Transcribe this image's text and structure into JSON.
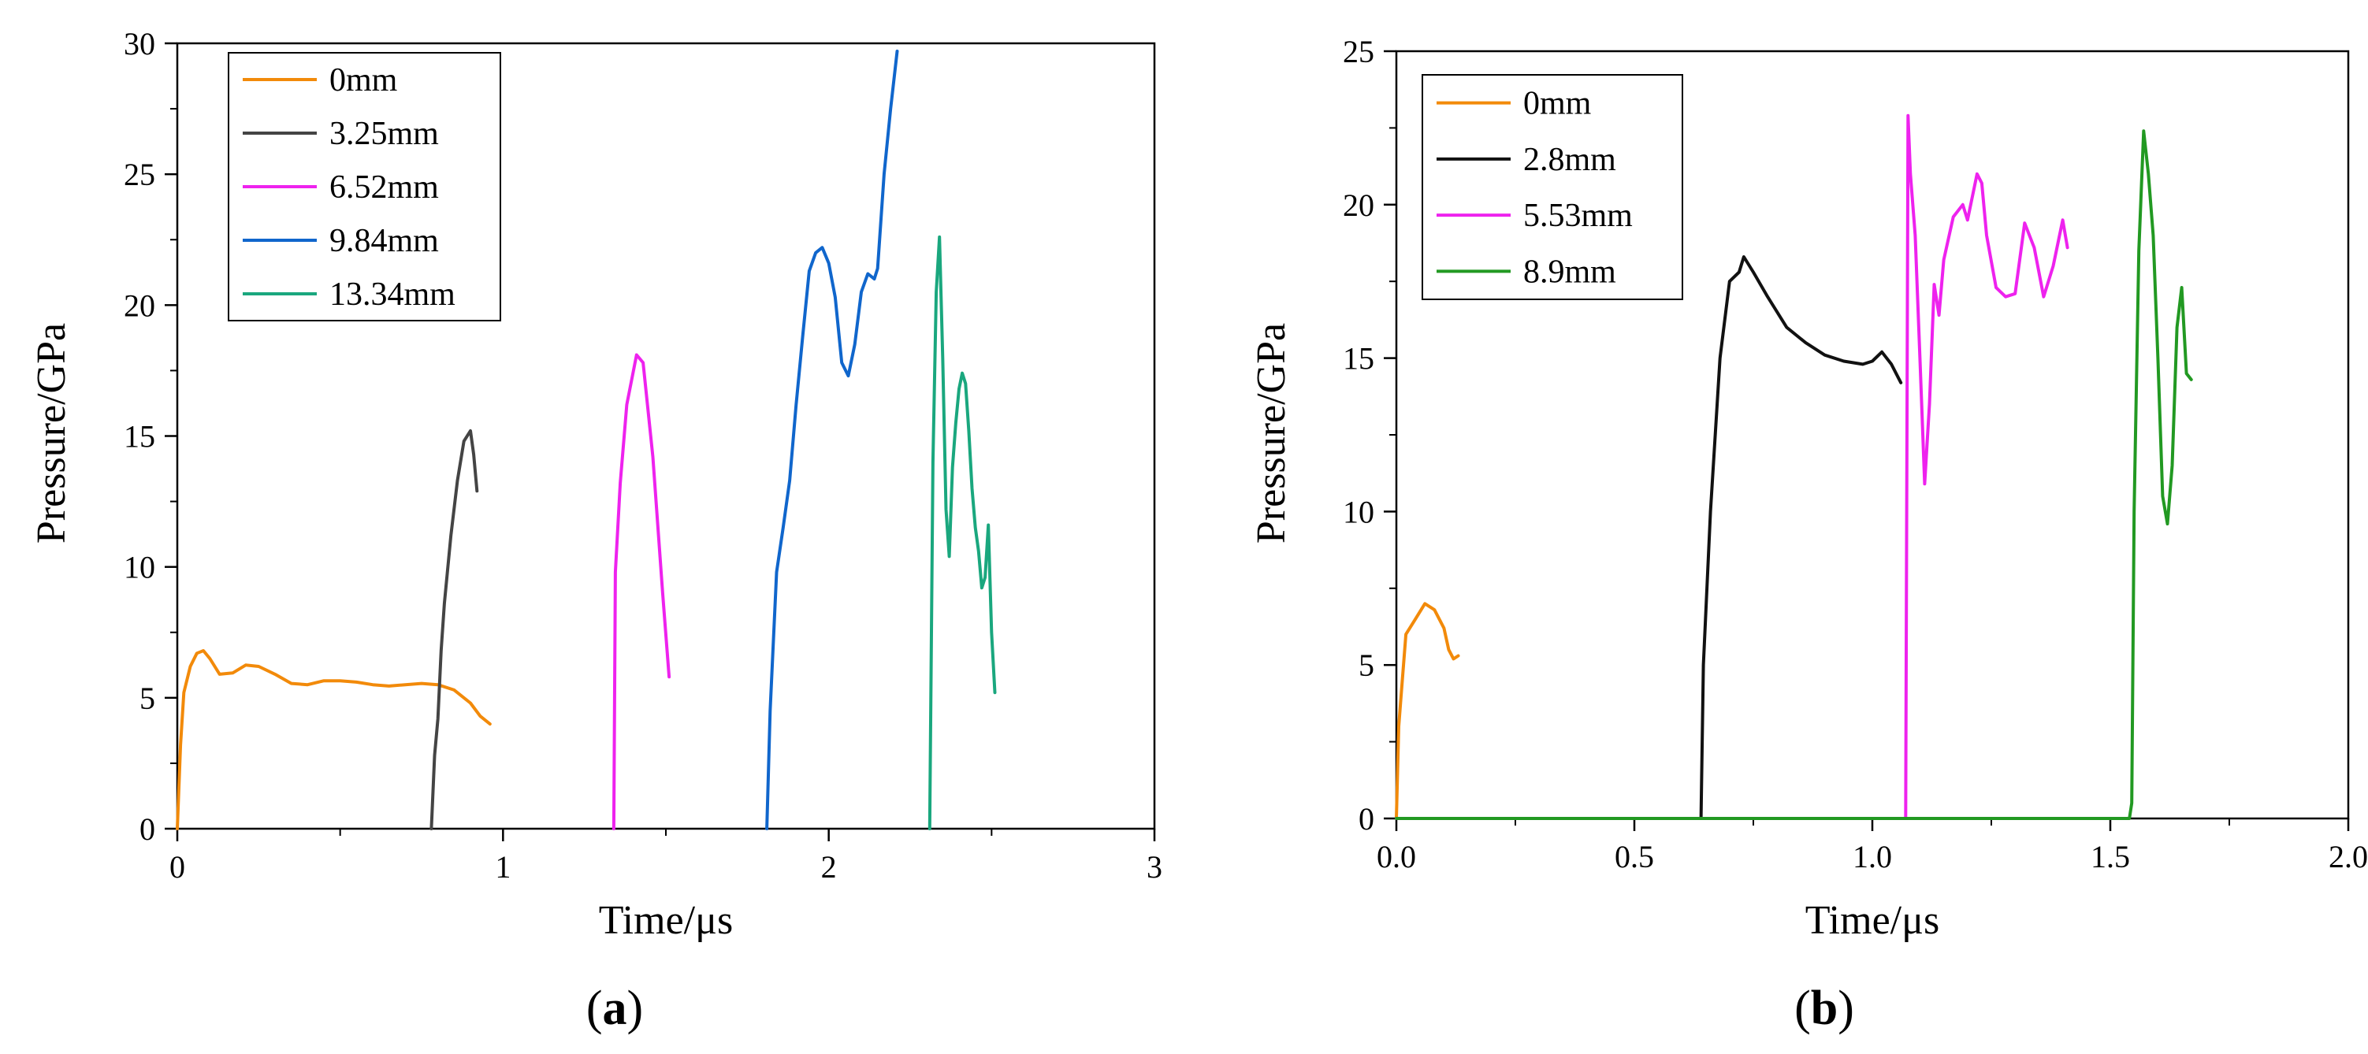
{
  "chart_data": [
    {
      "panel": "(a)",
      "panel_label": {
        "prefix": "(",
        "letter": "a",
        "suffix": ")"
      },
      "type": "line",
      "xlabel": "Time/μs",
      "ylabel": "Pressure/GPa",
      "xlim": [
        0,
        3
      ],
      "ylim": [
        0,
        30
      ],
      "xticks": [
        0,
        1,
        2,
        3
      ],
      "xtick_labels": [
        "0",
        "1",
        "2",
        "3"
      ],
      "yticks": [
        0,
        5,
        10,
        15,
        20,
        25,
        30
      ],
      "ytick_labels": [
        "0",
        "5",
        "10",
        "15",
        "20",
        "25",
        "30"
      ],
      "legend_position": "top-left",
      "series": [
        {
          "name": "0mm",
          "color": "#f28a0a",
          "x": [
            0,
            0.01,
            0.02,
            0.04,
            0.06,
            0.08,
            0.1,
            0.13,
            0.17,
            0.21,
            0.25,
            0.3,
            0.35,
            0.4,
            0.45,
            0.5,
            0.55,
            0.6,
            0.65,
            0.7,
            0.75,
            0.8,
            0.85,
            0.9,
            0.93,
            0.96
          ],
          "y": [
            0,
            3.2,
            5.2,
            6.2,
            6.7,
            6.8,
            6.5,
            5.9,
            5.95,
            6.25,
            6.2,
            5.9,
            5.55,
            5.5,
            5.65,
            5.65,
            5.6,
            5.5,
            5.45,
            5.5,
            5.55,
            5.5,
            5.3,
            4.8,
            4.3,
            4.0
          ]
        },
        {
          "name": "3.25mm",
          "color": "#444444",
          "x": [
            0.78,
            0.79,
            0.8,
            0.81,
            0.82,
            0.84,
            0.86,
            0.88,
            0.9,
            0.91,
            0.92
          ],
          "y": [
            0,
            2.8,
            4.2,
            6.8,
            8.6,
            11.2,
            13.3,
            14.8,
            15.2,
            14.3,
            12.9
          ]
        },
        {
          "name": "6.52mm",
          "color": "#ee22ee",
          "x": [
            1.34,
            1.345,
            1.36,
            1.38,
            1.41,
            1.43,
            1.46,
            1.49,
            1.51
          ],
          "y": [
            0,
            9.8,
            13.2,
            16.2,
            18.1,
            17.8,
            14.2,
            9.0,
            5.8
          ]
        },
        {
          "name": "9.84mm",
          "color": "#1066cc",
          "x": [
            1.81,
            1.82,
            1.84,
            1.86,
            1.88,
            1.9,
            1.92,
            1.94,
            1.96,
            1.98,
            2.0,
            2.02,
            2.04,
            2.06,
            2.08,
            2.1,
            2.12,
            2.14,
            2.15,
            2.17,
            2.19,
            2.21
          ],
          "y": [
            0,
            4.5,
            9.8,
            11.5,
            13.3,
            16.2,
            18.8,
            21.3,
            22.0,
            22.2,
            21.6,
            20.3,
            17.8,
            17.3,
            18.5,
            20.5,
            21.2,
            21.0,
            21.4,
            25.0,
            27.5,
            29.7
          ]
        },
        {
          "name": "13.34mm",
          "color": "#1aa77e",
          "x": [
            2.31,
            2.32,
            2.33,
            2.34,
            2.35,
            2.36,
            2.37,
            2.38,
            2.39,
            2.4,
            2.41,
            2.42,
            2.43,
            2.44,
            2.45,
            2.46,
            2.47,
            2.48,
            2.49,
            2.5,
            2.51
          ],
          "y": [
            0,
            14.0,
            20.5,
            22.6,
            18.0,
            12.2,
            10.4,
            13.8,
            15.5,
            16.8,
            17.4,
            17.0,
            15.2,
            13.0,
            11.5,
            10.6,
            9.2,
            9.6,
            11.6,
            7.5,
            5.2
          ]
        }
      ]
    },
    {
      "panel": "(b)",
      "panel_label": {
        "prefix": "(",
        "letter": "b",
        "suffix": ")"
      },
      "type": "line",
      "xlabel": "Time/μs",
      "ylabel": "Pressure/GPa",
      "xlim": [
        0,
        2.0
      ],
      "ylim": [
        0,
        25
      ],
      "xticks": [
        0,
        0.5,
        1.0,
        1.5,
        2.0
      ],
      "xtick_labels": [
        "0.0",
        "0.5",
        "1.0",
        "1.5",
        "2.0"
      ],
      "yticks": [
        0,
        5,
        10,
        15,
        20,
        25
      ],
      "ytick_labels": [
        "0",
        "5",
        "10",
        "15",
        "20",
        "25"
      ],
      "legend_position": "top-left",
      "series": [
        {
          "name": "0mm",
          "color": "#f28a0a",
          "x": [
            0,
            0.005,
            0.01,
            0.02,
            0.04,
            0.06,
            0.08,
            0.1,
            0.11,
            0.12,
            0.13
          ],
          "y": [
            0,
            3.0,
            4.0,
            6.0,
            6.5,
            7.0,
            6.8,
            6.2,
            5.5,
            5.2,
            5.3
          ]
        },
        {
          "name": "2.8mm",
          "color": "#111111",
          "x": [
            0.64,
            0.645,
            0.66,
            0.68,
            0.7,
            0.72,
            0.73,
            0.75,
            0.78,
            0.82,
            0.86,
            0.9,
            0.94,
            0.98,
            1.0,
            1.02,
            1.04,
            1.06
          ],
          "y": [
            0,
            5.0,
            10.0,
            15.0,
            17.5,
            17.8,
            18.3,
            17.8,
            17.0,
            16.0,
            15.5,
            15.1,
            14.9,
            14.8,
            14.9,
            15.2,
            14.8,
            14.2
          ]
        },
        {
          "name": "5.53mm",
          "color": "#ee22ee",
          "x": [
            0,
            1.07,
            1.075,
            1.08,
            1.09,
            1.1,
            1.11,
            1.12,
            1.13,
            1.14,
            1.15,
            1.17,
            1.19,
            1.2,
            1.22,
            1.23,
            1.24,
            1.26,
            1.28,
            1.3,
            1.32,
            1.34,
            1.36,
            1.38,
            1.4,
            1.41
          ],
          "y": [
            0,
            0,
            22.9,
            21.0,
            19.0,
            15.0,
            10.9,
            13.5,
            17.4,
            16.4,
            18.2,
            19.6,
            20.0,
            19.5,
            21.0,
            20.7,
            19.0,
            17.3,
            17.0,
            17.1,
            19.4,
            18.6,
            17.0,
            18.0,
            19.5,
            18.6
          ]
        },
        {
          "name": "8.9mm",
          "color": "#229922",
          "x": [
            0,
            1.54,
            1.545,
            1.55,
            1.56,
            1.57,
            1.58,
            1.59,
            1.6,
            1.61,
            1.62,
            1.63,
            1.64,
            1.65,
            1.66,
            1.67
          ],
          "y": [
            0,
            0,
            0.5,
            10.0,
            18.5,
            22.4,
            21.0,
            19.0,
            15.0,
            10.5,
            9.6,
            11.5,
            16.0,
            17.3,
            14.5,
            14.3
          ]
        }
      ]
    }
  ]
}
